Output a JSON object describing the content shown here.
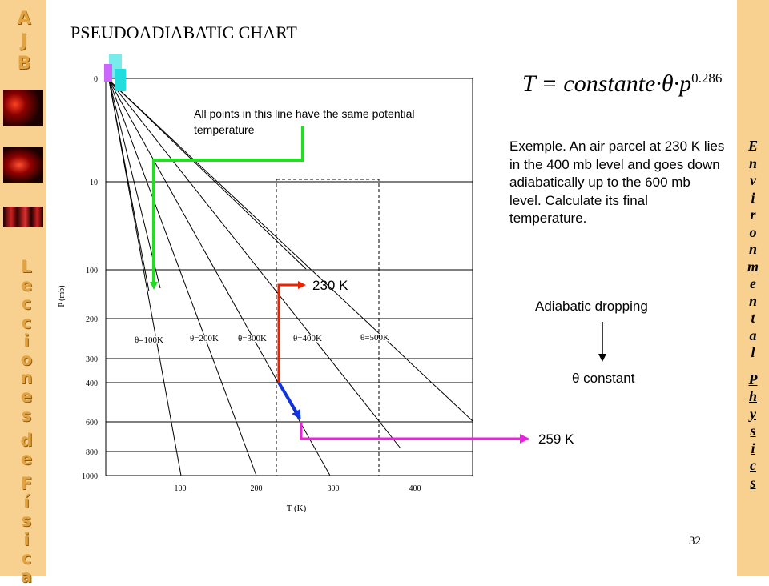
{
  "sidebar": {
    "logo_letters": [
      "A",
      "J",
      "B"
    ],
    "left_vertical": [
      "L",
      "e",
      "c",
      "c",
      "i",
      "o",
      "n",
      "e",
      "s",
      "",
      "d",
      "e",
      "",
      "F",
      "í",
      "s",
      "i",
      "c",
      "a"
    ],
    "right_vertical_1": [
      "E",
      "n",
      "v",
      "i",
      "r",
      "o",
      "n",
      "m",
      "e",
      "n",
      "t",
      "a",
      "l"
    ],
    "right_vertical_2": [
      "P",
      "h",
      "y",
      "s",
      "i",
      "c",
      "s"
    ]
  },
  "page": {
    "title": "PSEUDOADIABATIC CHART",
    "formula_main": "T = constante·θ·p",
    "formula_exp": "0.286",
    "example_text": "Exemple. An air parcel at 230 K lies in the 400 mb level and goes down adiabatically up to the 600 mb level. Calculate its final temperature.",
    "note_text": "All points in this line have the same potential temperature",
    "adiabatic_label": "Adiabatic dropping",
    "theta_constant": "θ constant",
    "label_230": "230 K",
    "label_259": "259 K",
    "page_number": "32"
  },
  "colors": {
    "sidebar": "#f8d08f",
    "green": "#22dd22",
    "red": "#ee2200",
    "blue": "#1133dd",
    "magenta": "#ee22dd",
    "cyan": "#22dddd"
  },
  "chart_data": {
    "type": "line",
    "xlabel": "T (K)",
    "ylabel": "P (mb)",
    "y_scale": "log",
    "x_ticks": [
      "100",
      "200",
      "300",
      "400"
    ],
    "y_ticks": [
      "0",
      "10",
      "100",
      "200",
      "300",
      "400",
      "600",
      "800",
      "1000"
    ],
    "series": [
      {
        "name": "θ=100K",
        "theta": 100
      },
      {
        "name": "θ=200K",
        "theta": 200
      },
      {
        "name": "θ=300K",
        "theta": 300
      },
      {
        "name": "θ=400K",
        "theta": 400
      },
      {
        "name": "θ=500K",
        "theta": 500
      }
    ],
    "example": {
      "start_T": 230,
      "start_P": 400,
      "end_T": 259,
      "end_P": 600
    }
  }
}
